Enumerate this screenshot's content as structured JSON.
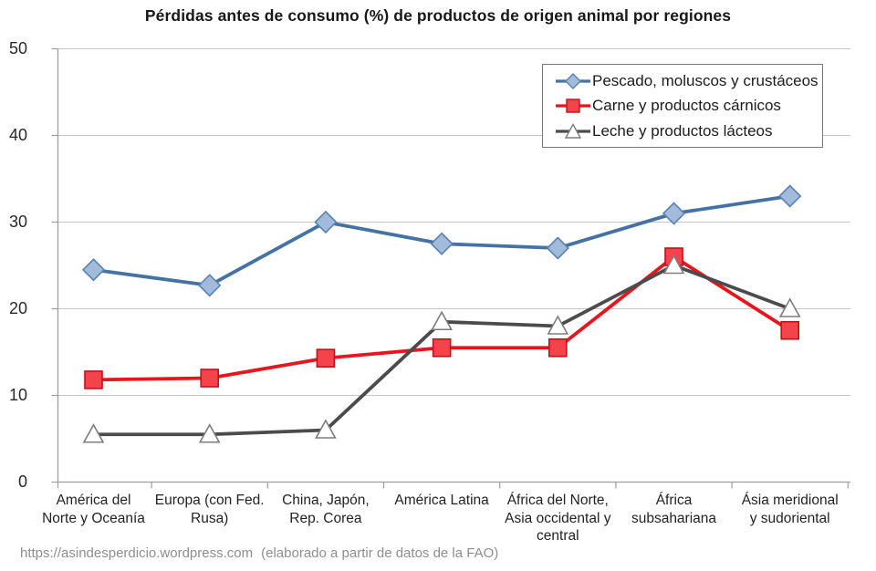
{
  "chart_data": {
    "type": "line",
    "title": "Pérdidas antes de consumo (%) de productos de origen animal por regiones",
    "categories": [
      "América del Norte y Oceanía",
      "Europa (con Fed. Rusa)",
      "China, Japón, Rep. Corea",
      "América Latina",
      "África del Norte, Asia occidental y central",
      "África subsahariana",
      "Ásia meridional y sudoriental"
    ],
    "category_lines": [
      [
        "América del",
        "Norte y Oceanía"
      ],
      [
        "Europa (con Fed.",
        "Rusa)"
      ],
      [
        "China, Japón,",
        "Rep. Corea"
      ],
      [
        "América Latina"
      ],
      [
        "África del Norte,",
        "Asia occidental y",
        "central"
      ],
      [
        "África",
        "subsahariana"
      ],
      [
        "Ásia meridional",
        "y sudoriental"
      ]
    ],
    "series": [
      {
        "id": "pescado",
        "name": "Pescado, moluscos y crustáceos",
        "marker": "diamond",
        "line_color": "#4472a4",
        "marker_fill": "#a2bbda",
        "marker_stroke": "#5b82b5",
        "values": [
          24.5,
          22.7,
          30,
          27.5,
          27,
          31,
          33
        ]
      },
      {
        "id": "carne",
        "name": "Carne y productos cárnicos",
        "marker": "square",
        "line_color": "#e8151d",
        "marker_fill": "#f4434b",
        "marker_stroke": "#bf1219",
        "values": [
          11.8,
          12,
          14.3,
          15.5,
          15.5,
          26,
          17.5
        ]
      },
      {
        "id": "leche",
        "name": "Leche y productos lácteos",
        "marker": "triangle",
        "line_color": "#4b4b4b",
        "marker_fill": "#ffffff",
        "marker_stroke": "#7d7d7d",
        "values": [
          5.5,
          5.5,
          6,
          18.5,
          18,
          25,
          20
        ]
      }
    ],
    "y_axis": {
      "min": 0,
      "max": 50,
      "step": 10,
      "tick_labels": [
        "0",
        "10",
        "20",
        "30",
        "40",
        "50"
      ]
    },
    "ylim": [
      0,
      50
    ],
    "grid": true,
    "legend_position": "top-right"
  },
  "source": {
    "url": "https://asindesperdicio.wordpress.com",
    "note": "(elaborado a partir de datos de la FAO)"
  }
}
